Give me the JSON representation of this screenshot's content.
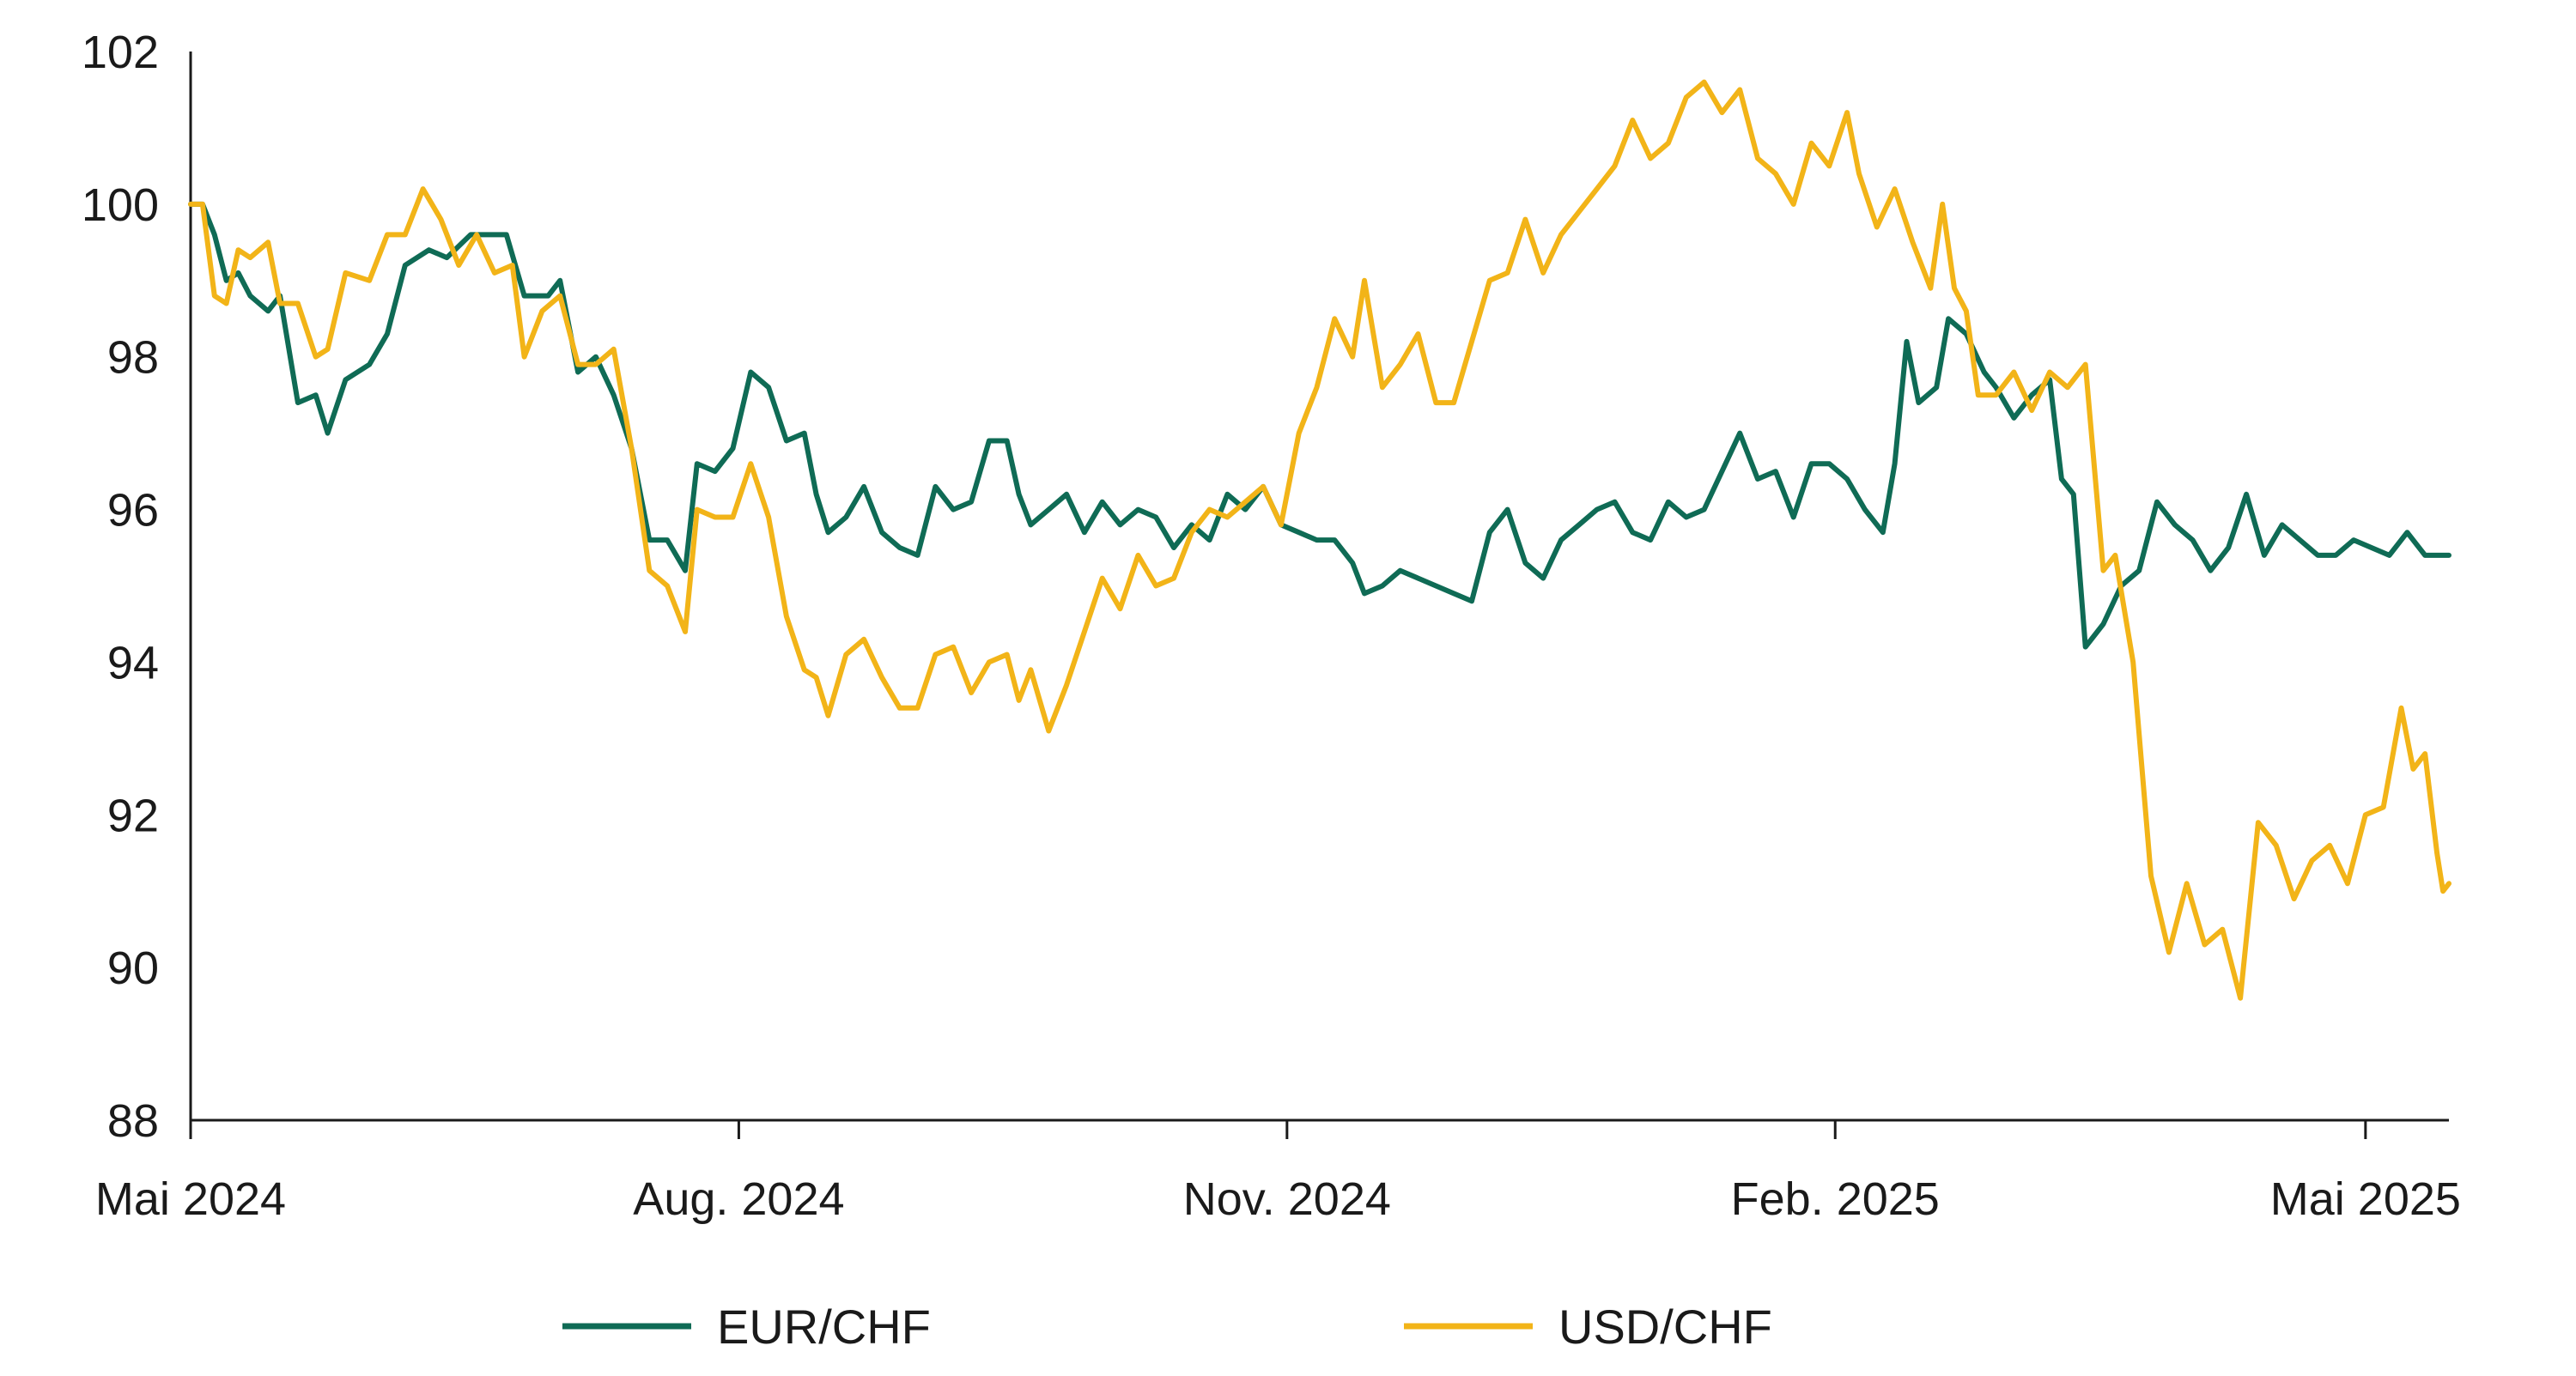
{
  "chart_data": {
    "type": "line",
    "title": "",
    "xlabel": "",
    "ylabel": "",
    "ylim": [
      88,
      102
    ],
    "y_ticks": [
      88,
      90,
      92,
      94,
      96,
      98,
      100,
      102
    ],
    "x_range": [
      "2024-05-01",
      "2025-05-15"
    ],
    "x_ticks": [
      {
        "date": "2024-05-01",
        "label": "Mai 2024"
      },
      {
        "date": "2024-08-01",
        "label": "Aug. 2024"
      },
      {
        "date": "2024-11-01",
        "label": "Nov. 2024"
      },
      {
        "date": "2025-02-01",
        "label": "Feb. 2025"
      },
      {
        "date": "2025-05-01",
        "label": "Mai 2025"
      }
    ],
    "grid": false,
    "legend": "bottom",
    "colors": {
      "eur_chf": "#0f6b55",
      "usd_chf": "#f2b418",
      "axis": "#1a1a1a"
    },
    "series": [
      {
        "name": "EUR/CHF",
        "color": "#0f6b55",
        "points": [
          [
            "2024-05-01",
            100.0
          ],
          [
            "2024-05-03",
            100.0
          ],
          [
            "2024-05-05",
            99.6
          ],
          [
            "2024-05-07",
            99.0
          ],
          [
            "2024-05-09",
            99.1
          ],
          [
            "2024-05-11",
            98.8
          ],
          [
            "2024-05-14",
            98.6
          ],
          [
            "2024-05-16",
            98.8
          ],
          [
            "2024-05-19",
            97.4
          ],
          [
            "2024-05-22",
            97.5
          ],
          [
            "2024-05-24",
            97.0
          ],
          [
            "2024-05-27",
            97.7
          ],
          [
            "2024-05-31",
            97.9
          ],
          [
            "2024-06-03",
            98.3
          ],
          [
            "2024-06-06",
            99.2
          ],
          [
            "2024-06-10",
            99.4
          ],
          [
            "2024-06-13",
            99.3
          ],
          [
            "2024-06-17",
            99.6
          ],
          [
            "2024-06-20",
            99.6
          ],
          [
            "2024-06-23",
            99.6
          ],
          [
            "2024-06-26",
            98.8
          ],
          [
            "2024-06-30",
            98.8
          ],
          [
            "2024-07-02",
            99.0
          ],
          [
            "2024-07-05",
            97.8
          ],
          [
            "2024-07-08",
            98.0
          ],
          [
            "2024-07-11",
            97.5
          ],
          [
            "2024-07-14",
            96.8
          ],
          [
            "2024-07-17",
            95.6
          ],
          [
            "2024-07-20",
            95.6
          ],
          [
            "2024-07-23",
            95.2
          ],
          [
            "2024-07-25",
            96.6
          ],
          [
            "2024-07-28",
            96.5
          ],
          [
            "2024-07-31",
            96.8
          ],
          [
            "2024-08-03",
            97.8
          ],
          [
            "2024-08-06",
            97.6
          ],
          [
            "2024-08-09",
            96.9
          ],
          [
            "2024-08-12",
            97.0
          ],
          [
            "2024-08-14",
            96.2
          ],
          [
            "2024-08-16",
            95.7
          ],
          [
            "2024-08-19",
            95.9
          ],
          [
            "2024-08-22",
            96.3
          ],
          [
            "2024-08-25",
            95.7
          ],
          [
            "2024-08-28",
            95.5
          ],
          [
            "2024-08-31",
            95.4
          ],
          [
            "2024-09-03",
            96.3
          ],
          [
            "2024-09-06",
            96.0
          ],
          [
            "2024-09-09",
            96.1
          ],
          [
            "2024-09-12",
            96.9
          ],
          [
            "2024-09-15",
            96.9
          ],
          [
            "2024-09-17",
            96.2
          ],
          [
            "2024-09-19",
            95.8
          ],
          [
            "2024-09-22",
            96.0
          ],
          [
            "2024-09-25",
            96.2
          ],
          [
            "2024-09-28",
            95.7
          ],
          [
            "2024-10-01",
            96.1
          ],
          [
            "2024-10-04",
            95.8
          ],
          [
            "2024-10-07",
            96.0
          ],
          [
            "2024-10-10",
            95.9
          ],
          [
            "2024-10-13",
            95.5
          ],
          [
            "2024-10-16",
            95.8
          ],
          [
            "2024-10-19",
            95.6
          ],
          [
            "2024-10-22",
            96.2
          ],
          [
            "2024-10-25",
            96.0
          ],
          [
            "2024-10-28",
            96.3
          ],
          [
            "2024-10-31",
            95.8
          ],
          [
            "2024-11-03",
            95.7
          ],
          [
            "2024-11-06",
            95.6
          ],
          [
            "2024-11-09",
            95.6
          ],
          [
            "2024-11-12",
            95.3
          ],
          [
            "2024-11-14",
            94.9
          ],
          [
            "2024-11-17",
            95.0
          ],
          [
            "2024-11-20",
            95.2
          ],
          [
            "2024-11-23",
            95.1
          ],
          [
            "2024-11-26",
            95.0
          ],
          [
            "2024-11-29",
            94.9
          ],
          [
            "2024-12-02",
            94.8
          ],
          [
            "2024-12-05",
            95.7
          ],
          [
            "2024-12-08",
            96.0
          ],
          [
            "2024-12-11",
            95.3
          ],
          [
            "2024-12-14",
            95.1
          ],
          [
            "2024-12-17",
            95.6
          ],
          [
            "2024-12-20",
            95.8
          ],
          [
            "2024-12-23",
            96.0
          ],
          [
            "2024-12-26",
            96.1
          ],
          [
            "2024-12-29",
            95.7
          ],
          [
            "2025-01-01",
            95.6
          ],
          [
            "2025-01-04",
            96.1
          ],
          [
            "2025-01-07",
            95.9
          ],
          [
            "2025-01-10",
            96.0
          ],
          [
            "2025-01-13",
            96.5
          ],
          [
            "2025-01-16",
            97.0
          ],
          [
            "2025-01-19",
            96.4
          ],
          [
            "2025-01-22",
            96.5
          ],
          [
            "2025-01-25",
            95.9
          ],
          [
            "2025-01-28",
            96.6
          ],
          [
            "2025-01-31",
            96.6
          ],
          [
            "2025-02-03",
            96.4
          ],
          [
            "2025-02-06",
            96.0
          ],
          [
            "2025-02-09",
            95.7
          ],
          [
            "2025-02-11",
            96.6
          ],
          [
            "2025-02-13",
            98.2
          ],
          [
            "2025-02-15",
            97.4
          ],
          [
            "2025-02-18",
            97.6
          ],
          [
            "2025-02-20",
            98.5
          ],
          [
            "2025-02-23",
            98.3
          ],
          [
            "2025-02-26",
            97.8
          ],
          [
            "2025-02-28",
            97.6
          ],
          [
            "2025-03-03",
            97.2
          ],
          [
            "2025-03-06",
            97.5
          ],
          [
            "2025-03-09",
            97.7
          ],
          [
            "2025-03-11",
            96.4
          ],
          [
            "2025-03-13",
            96.2
          ],
          [
            "2025-03-15",
            94.2
          ],
          [
            "2025-03-18",
            94.5
          ],
          [
            "2025-03-21",
            95.0
          ],
          [
            "2025-03-24",
            95.2
          ],
          [
            "2025-03-27",
            96.1
          ],
          [
            "2025-03-30",
            95.8
          ],
          [
            "2025-04-02",
            95.6
          ],
          [
            "2025-04-05",
            95.2
          ],
          [
            "2025-04-08",
            95.5
          ],
          [
            "2025-04-11",
            96.2
          ],
          [
            "2025-04-14",
            95.4
          ],
          [
            "2025-04-17",
            95.8
          ],
          [
            "2025-04-20",
            95.6
          ],
          [
            "2025-04-23",
            95.4
          ],
          [
            "2025-04-26",
            95.4
          ],
          [
            "2025-04-29",
            95.6
          ],
          [
            "2025-05-02",
            95.5
          ],
          [
            "2025-05-05",
            95.4
          ],
          [
            "2025-05-08",
            95.7
          ],
          [
            "2025-05-11",
            95.4
          ],
          [
            "2025-05-15",
            95.4
          ]
        ]
      },
      {
        "name": "USD/CHF",
        "color": "#f2b418",
        "points": [
          [
            "2024-05-01",
            100.0
          ],
          [
            "2024-05-03",
            100.0
          ],
          [
            "2024-05-05",
            98.8
          ],
          [
            "2024-05-07",
            98.7
          ],
          [
            "2024-05-09",
            99.4
          ],
          [
            "2024-05-11",
            99.3
          ],
          [
            "2024-05-14",
            99.5
          ],
          [
            "2024-05-16",
            98.7
          ],
          [
            "2024-05-19",
            98.7
          ],
          [
            "2024-05-22",
            98.0
          ],
          [
            "2024-05-24",
            98.1
          ],
          [
            "2024-05-27",
            99.1
          ],
          [
            "2024-05-31",
            99.0
          ],
          [
            "2024-06-03",
            99.6
          ],
          [
            "2024-06-06",
            99.6
          ],
          [
            "2024-06-09",
            100.2
          ],
          [
            "2024-06-12",
            99.8
          ],
          [
            "2024-06-15",
            99.2
          ],
          [
            "2024-06-18",
            99.6
          ],
          [
            "2024-06-21",
            99.1
          ],
          [
            "2024-06-24",
            99.2
          ],
          [
            "2024-06-26",
            98.0
          ],
          [
            "2024-06-29",
            98.6
          ],
          [
            "2024-07-02",
            98.8
          ],
          [
            "2024-07-05",
            97.9
          ],
          [
            "2024-07-08",
            97.9
          ],
          [
            "2024-07-11",
            98.1
          ],
          [
            "2024-07-14",
            96.8
          ],
          [
            "2024-07-17",
            95.2
          ],
          [
            "2024-07-20",
            95.0
          ],
          [
            "2024-07-23",
            94.4
          ],
          [
            "2024-07-25",
            96.0
          ],
          [
            "2024-07-28",
            95.9
          ],
          [
            "2024-07-31",
            95.9
          ],
          [
            "2024-08-03",
            96.6
          ],
          [
            "2024-08-06",
            95.9
          ],
          [
            "2024-08-09",
            94.6
          ],
          [
            "2024-08-12",
            93.9
          ],
          [
            "2024-08-14",
            93.8
          ],
          [
            "2024-08-16",
            93.3
          ],
          [
            "2024-08-19",
            94.1
          ],
          [
            "2024-08-22",
            94.3
          ],
          [
            "2024-08-25",
            93.8
          ],
          [
            "2024-08-28",
            93.4
          ],
          [
            "2024-08-31",
            93.4
          ],
          [
            "2024-09-03",
            94.1
          ],
          [
            "2024-09-06",
            94.2
          ],
          [
            "2024-09-09",
            93.6
          ],
          [
            "2024-09-12",
            94.0
          ],
          [
            "2024-09-15",
            94.1
          ],
          [
            "2024-09-17",
            93.5
          ],
          [
            "2024-09-19",
            93.9
          ],
          [
            "2024-09-22",
            93.1
          ],
          [
            "2024-09-25",
            93.7
          ],
          [
            "2024-09-28",
            94.4
          ],
          [
            "2024-10-01",
            95.1
          ],
          [
            "2024-10-04",
            94.7
          ],
          [
            "2024-10-07",
            95.4
          ],
          [
            "2024-10-10",
            95.0
          ],
          [
            "2024-10-13",
            95.1
          ],
          [
            "2024-10-16",
            95.7
          ],
          [
            "2024-10-19",
            96.0
          ],
          [
            "2024-10-22",
            95.9
          ],
          [
            "2024-10-25",
            96.1
          ],
          [
            "2024-10-28",
            96.3
          ],
          [
            "2024-10-31",
            95.8
          ],
          [
            "2024-11-03",
            97.0
          ],
          [
            "2024-11-06",
            97.6
          ],
          [
            "2024-11-09",
            98.5
          ],
          [
            "2024-11-12",
            98.0
          ],
          [
            "2024-11-14",
            99.0
          ],
          [
            "2024-11-17",
            97.6
          ],
          [
            "2024-11-20",
            97.9
          ],
          [
            "2024-11-23",
            98.3
          ],
          [
            "2024-11-26",
            97.4
          ],
          [
            "2024-11-29",
            97.4
          ],
          [
            "2024-12-02",
            98.2
          ],
          [
            "2024-12-05",
            99.0
          ],
          [
            "2024-12-08",
            99.1
          ],
          [
            "2024-12-11",
            99.8
          ],
          [
            "2024-12-14",
            99.1
          ],
          [
            "2024-12-17",
            99.6
          ],
          [
            "2024-12-20",
            99.9
          ],
          [
            "2024-12-23",
            100.2
          ],
          [
            "2024-12-26",
            100.5
          ],
          [
            "2024-12-29",
            101.1
          ],
          [
            "2025-01-01",
            100.6
          ],
          [
            "2025-01-04",
            100.8
          ],
          [
            "2025-01-07",
            101.4
          ],
          [
            "2025-01-10",
            101.6
          ],
          [
            "2025-01-13",
            101.2
          ],
          [
            "2025-01-16",
            101.5
          ],
          [
            "2025-01-19",
            100.6
          ],
          [
            "2025-01-22",
            100.4
          ],
          [
            "2025-01-25",
            100.0
          ],
          [
            "2025-01-28",
            100.8
          ],
          [
            "2025-01-31",
            100.5
          ],
          [
            "2025-02-03",
            101.2
          ],
          [
            "2025-02-05",
            100.4
          ],
          [
            "2025-02-08",
            99.7
          ],
          [
            "2025-02-11",
            100.2
          ],
          [
            "2025-02-14",
            99.5
          ],
          [
            "2025-02-17",
            98.9
          ],
          [
            "2025-02-19",
            100.0
          ],
          [
            "2025-02-21",
            98.9
          ],
          [
            "2025-02-23",
            98.6
          ],
          [
            "2025-02-25",
            97.5
          ],
          [
            "2025-02-28",
            97.5
          ],
          [
            "2025-03-03",
            97.8
          ],
          [
            "2025-03-06",
            97.3
          ],
          [
            "2025-03-09",
            97.8
          ],
          [
            "2025-03-12",
            97.6
          ],
          [
            "2025-03-15",
            97.9
          ],
          [
            "2025-03-18",
            95.2
          ],
          [
            "2025-03-20",
            95.4
          ],
          [
            "2025-03-23",
            94.0
          ],
          [
            "2025-03-26",
            91.2
          ],
          [
            "2025-03-29",
            90.2
          ],
          [
            "2025-04-01",
            91.1
          ],
          [
            "2025-04-04",
            90.3
          ],
          [
            "2025-04-07",
            90.5
          ],
          [
            "2025-04-10",
            89.6
          ],
          [
            "2025-04-13",
            91.9
          ],
          [
            "2025-04-16",
            91.6
          ],
          [
            "2025-04-19",
            90.9
          ],
          [
            "2025-04-22",
            91.4
          ],
          [
            "2025-04-25",
            91.6
          ],
          [
            "2025-04-28",
            91.1
          ],
          [
            "2025-05-01",
            92.0
          ],
          [
            "2025-05-04",
            92.1
          ],
          [
            "2025-05-07",
            93.4
          ],
          [
            "2025-05-09",
            92.6
          ],
          [
            "2025-05-11",
            92.8
          ],
          [
            "2025-05-13",
            91.5
          ],
          [
            "2025-05-14",
            91.0
          ],
          [
            "2025-05-15",
            91.1
          ]
        ]
      }
    ]
  }
}
